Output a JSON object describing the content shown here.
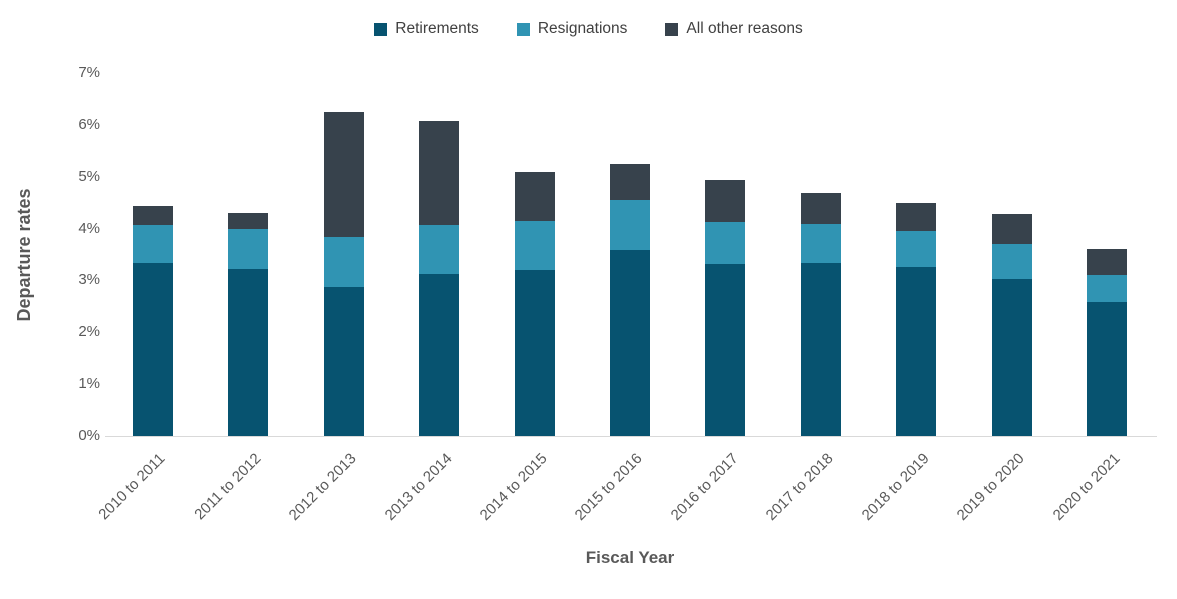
{
  "chart_data": {
    "type": "bar",
    "stacked": true,
    "title": "",
    "xlabel": "Fiscal Year",
    "ylabel": "Departure rates",
    "categories": [
      "2010 to 2011",
      "2011 to 2012",
      "2012 to 2013",
      "2013 to 2014",
      "2014 to 2015",
      "2015 to 2016",
      "2016 to 2017",
      "2017 to 2018",
      "2018 to 2019",
      "2019 to 2020",
      "2020 to 2021"
    ],
    "series": [
      {
        "name": "Retirements",
        "color": "#075370",
        "values": [
          3.33,
          3.22,
          2.87,
          3.13,
          3.2,
          3.59,
          3.32,
          3.33,
          3.25,
          3.03,
          2.59
        ]
      },
      {
        "name": "Resignations",
        "color": "#3094B3",
        "values": [
          0.73,
          0.78,
          0.97,
          0.93,
          0.94,
          0.97,
          0.81,
          0.76,
          0.7,
          0.67,
          0.52
        ]
      },
      {
        "name": "All other reasons",
        "color": "#37424C",
        "values": [
          0.38,
          0.31,
          2.4,
          2.01,
          0.96,
          0.68,
          0.81,
          0.59,
          0.54,
          0.58,
          0.5
        ]
      }
    ],
    "ylim": [
      0,
      7
    ],
    "ytick_step": 1,
    "yticks": [
      "0%",
      "1%",
      "2%",
      "3%",
      "4%",
      "5%",
      "6%",
      "7%"
    ],
    "legend_position": "top",
    "grid": false,
    "colors": {
      "axis_line": "#d9d9d9",
      "tick_text": "#595959",
      "axis_title_text": "#595959",
      "legend_text": "#404040"
    }
  }
}
